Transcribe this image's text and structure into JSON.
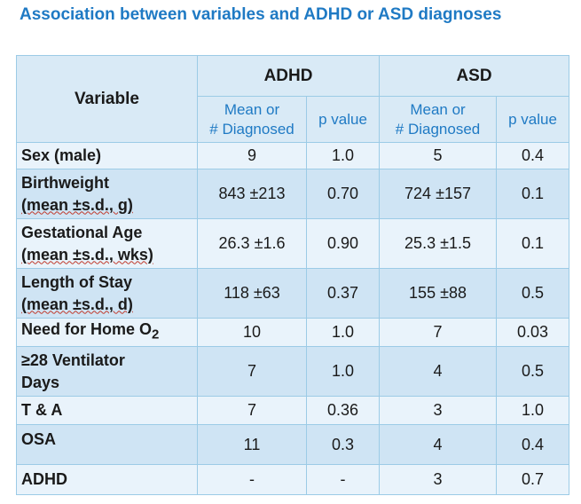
{
  "title": "Association between variables and ADHD or ASD diagnoses",
  "header": {
    "variable": "Variable",
    "groups": [
      "ADHD",
      "ASD"
    ],
    "mean_label_1": "Mean or",
    "mean_label_2": "# Diagnosed",
    "p_label": "p value"
  },
  "rows": [
    {
      "label_1": "Sex (male)",
      "label_2": "",
      "adhd_mean": "9",
      "adhd_p": "1.0",
      "asd_mean": "5",
      "asd_p": "0.4"
    },
    {
      "label_1": "Birthweight",
      "label_2": "(mean ±s.d., g)",
      "adhd_mean": "843 ±213",
      "adhd_p": "0.70",
      "asd_mean": "724 ±157",
      "asd_p": "0.1"
    },
    {
      "label_1": "Gestational Age",
      "label_2": "(mean ±s.d., wks)",
      "adhd_mean": "26.3 ±1.6",
      "adhd_p": "0.90",
      "asd_mean": "25.3 ±1.5",
      "asd_p": "0.1"
    },
    {
      "label_1": "Length of Stay",
      "label_2": "(mean ±s.d., d)",
      "adhd_mean": "118 ±63",
      "adhd_p": "0.37",
      "asd_mean": "155 ±88",
      "asd_p": "0.5"
    },
    {
      "label_1": "Need for Home O",
      "label_sub": "2",
      "adhd_mean": "10",
      "adhd_p": "1.0",
      "asd_mean": "7",
      "asd_p": "0.03"
    },
    {
      "label_1": "≥28 Ventilator",
      "label_2": "Days",
      "adhd_mean": "7",
      "adhd_p": "1.0",
      "asd_mean": "4",
      "asd_p": "0.5"
    },
    {
      "label_1": "T & A",
      "label_2": "",
      "adhd_mean": "7",
      "adhd_p": "0.36",
      "asd_mean": "3",
      "asd_p": "1.0"
    },
    {
      "label_1": "OSA",
      "label_2": "",
      "adhd_mean": "11",
      "adhd_p": "0.3",
      "asd_mean": "4",
      "asd_p": "0.4"
    },
    {
      "label_1": "ADHD",
      "label_2": "",
      "adhd_mean": "-",
      "adhd_p": "-",
      "asd_mean": "3",
      "asd_p": "0.7"
    }
  ],
  "colors": {
    "title": "#1f7ac4",
    "header_bg": "#d9eaf6",
    "row_light": "#e9f3fb",
    "row_dark": "#cfe4f4",
    "border": "#9ccbe6"
  }
}
